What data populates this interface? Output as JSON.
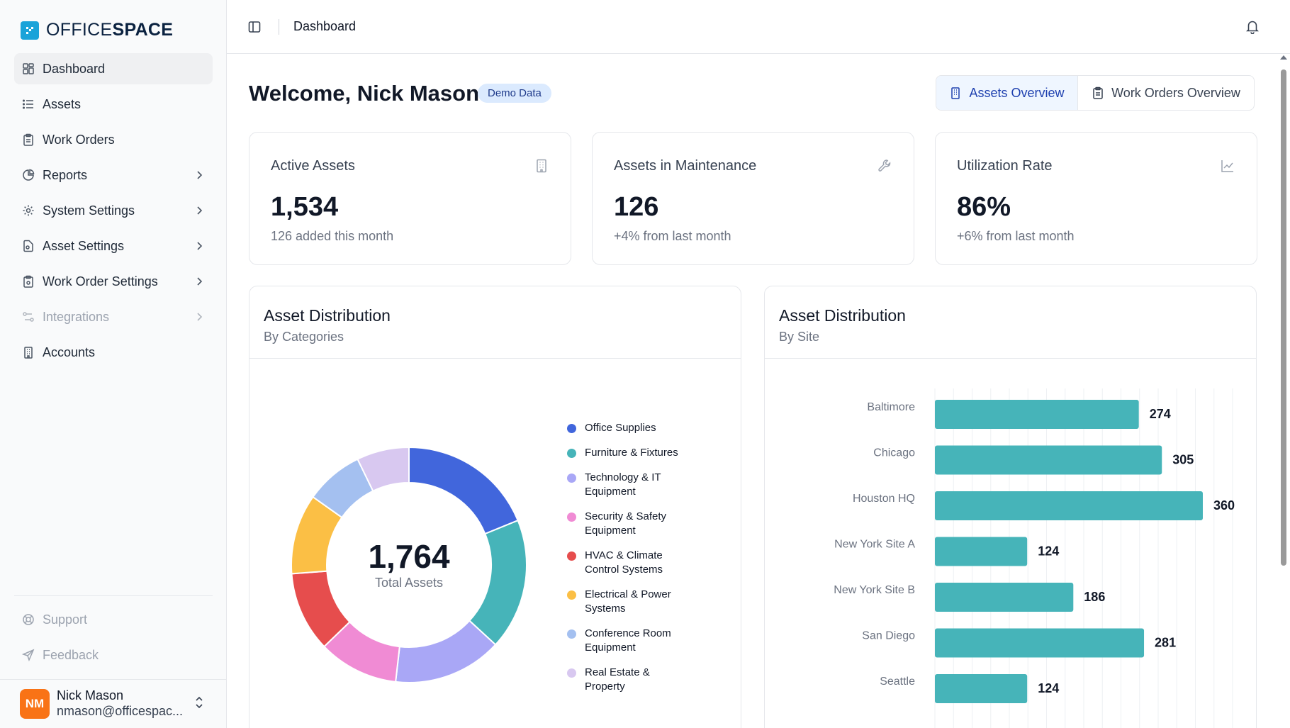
{
  "brand": {
    "logo_light": "OFFICE",
    "logo_bold": "SPACE",
    "accent": "#1aa3d9"
  },
  "sidebar": {
    "items": [
      {
        "label": "Dashboard",
        "icon": "dashboard-icon",
        "active": true,
        "chevron": false
      },
      {
        "label": "Assets",
        "icon": "list-icon",
        "chevron": false
      },
      {
        "label": "Work Orders",
        "icon": "clipboard-icon",
        "chevron": false
      },
      {
        "label": "Reports",
        "icon": "pie-chart-icon",
        "chevron": true
      },
      {
        "label": "System Settings",
        "icon": "gear-icon",
        "chevron": true
      },
      {
        "label": "Asset Settings",
        "icon": "file-settings-icon",
        "chevron": true
      },
      {
        "label": "Work Order Settings",
        "icon": "clipboard-settings-icon",
        "chevron": true
      },
      {
        "label": "Integrations",
        "icon": "integrations-icon",
        "chevron": true,
        "disabled": true
      },
      {
        "label": "Accounts",
        "icon": "building-icon",
        "chevron": false
      }
    ],
    "support": "Support",
    "feedback": "Feedback"
  },
  "user": {
    "initials": "NM",
    "name": "Nick Mason",
    "email": "nmason@officespac..."
  },
  "topbar": {
    "breadcrumb": "Dashboard"
  },
  "main": {
    "welcome": "Welcome, Nick Mason",
    "badge": "Demo Data",
    "tabs": [
      {
        "label": "Assets Overview",
        "active": true
      },
      {
        "label": "Work Orders Overview",
        "active": false
      }
    ],
    "stats": [
      {
        "title": "Active Assets",
        "value": "1,534",
        "sub": "126 added this month",
        "icon": "building-icon"
      },
      {
        "title": "Assets in Maintenance",
        "value": "126",
        "sub": "+4% from last month",
        "icon": "wrench-icon"
      },
      {
        "title": "Utilization Rate",
        "value": "86%",
        "sub": "+6% from last month",
        "icon": "line-chart-icon"
      }
    ],
    "distribution_categories": {
      "title": "Asset Distribution",
      "subtitle": "By Categories",
      "total": "1,764",
      "total_label": "Total Assets"
    },
    "distribution_sites": {
      "title": "Asset Distribution",
      "subtitle": "By Site"
    }
  },
  "chart_data": [
    {
      "type": "pie",
      "title": "Asset Distribution",
      "subtitle": "By Categories",
      "total": 1764,
      "categories": [
        "Office Supplies",
        "Furniture & Fixtures",
        "Technology & IT Equipment",
        "Security & Safety Equipment",
        "HVAC & Climate Control Systems",
        "Electrical & Power Systems",
        "Conference Room Equipment",
        "Real Estate & Property"
      ],
      "legend_lines": [
        [
          "Office Supplies"
        ],
        [
          "Furniture & Fixtures"
        ],
        [
          "Technology & IT",
          "Equipment"
        ],
        [
          "Security & Safety",
          "Equipment"
        ],
        [
          "HVAC & Climate",
          "Control Systems"
        ],
        [
          "Electrical & Power",
          "Systems"
        ],
        [
          "Conference Room",
          "Equipment"
        ],
        [
          "Real Estate &",
          "Property"
        ]
      ],
      "values": [
        332,
        318,
        264,
        194,
        194,
        194,
        141,
        127
      ],
      "colors": [
        "#4166dc",
        "#46b4b9",
        "#a9a7f6",
        "#f08bd4",
        "#e64d4d",
        "#fbbf45",
        "#a4c0f0",
        "#d8c8f0"
      ]
    },
    {
      "type": "bar",
      "orientation": "horizontal",
      "title": "Asset Distribution",
      "subtitle": "By Site",
      "categories": [
        "Baltimore",
        "Chicago",
        "Houston HQ",
        "New York Site A",
        "New York Site B",
        "San Diego",
        "Seattle"
      ],
      "values": [
        274,
        305,
        360,
        124,
        186,
        281,
        124
      ],
      "xlim": [
        0,
        400
      ],
      "color": "#46b4b9",
      "grid": true
    }
  ]
}
